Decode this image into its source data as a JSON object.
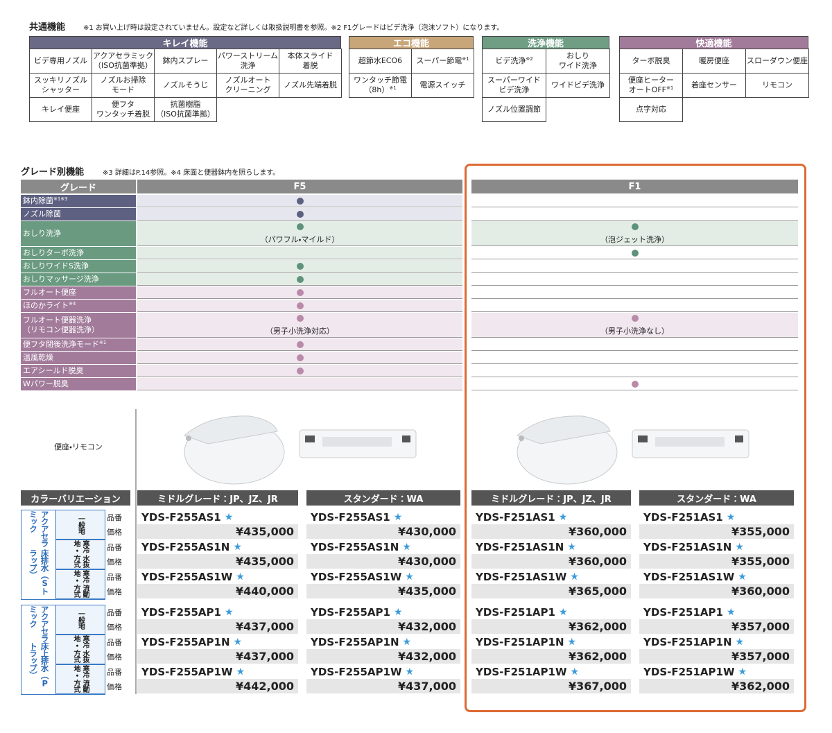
{
  "common": {
    "title": "共通機能",
    "note": "※1 お買い上げ時は設定されていません。設定など詳しくは取扱説明書を参照。※2 F1グレードはビデ洗浄（泡沫ソフト）になります。",
    "groups": [
      {
        "name": "キレイ機能",
        "color": "#6b6a86",
        "items": [
          {
            "text": "ビデ専用ノズル"
          },
          {
            "text": "アクアセラミック\n（ISO抗菌準拠）"
          },
          {
            "text": "鉢内スプレー"
          },
          {
            "text": "パワーストリーム\n洗浄"
          },
          {
            "text": "本体スライド\n着脱"
          },
          {
            "text": "スッキリノズル\nシャッター"
          },
          {
            "text": "ノズルお掃除\nモード"
          },
          {
            "text": "ノズルそうじ"
          },
          {
            "text": "ノズルオート\nクリーニング"
          },
          {
            "text": "ノズル先端着脱"
          },
          {
            "text": "キレイ便座"
          },
          {
            "text": "便フタ\nワンタッチ着脱"
          },
          {
            "text": "抗菌樹脂\n（ISO抗菌準拠）"
          }
        ]
      },
      {
        "name": "エコ機能",
        "color": "#c9a67a",
        "items": [
          {
            "text": "超節水ECO6"
          },
          {
            "text": "スーパー節電",
            "note": "※1"
          },
          {
            "text": "ワンタッチ節電\n（8h）",
            "note": "※1"
          },
          {
            "text": "電源スイッチ"
          }
        ]
      },
      {
        "name": "洗浄機能",
        "color": "#6f9e85",
        "items": [
          {
            "text": "ビデ洗浄",
            "note": "※2"
          },
          {
            "text": "おしり\nワイド洗浄"
          },
          {
            "text": "スーパーワイド\nビデ洗浄"
          },
          {
            "text": "ワイドビデ洗浄"
          },
          {
            "text": "ノズル位置調節"
          }
        ]
      },
      {
        "name": "快適機能",
        "color": "#a27b9b",
        "items": [
          {
            "text": "ターボ脱臭"
          },
          {
            "text": "暖房便座"
          },
          {
            "text": "スローダウン便座"
          },
          {
            "text": "便座ヒーター\nオートOFF",
            "note": "※1"
          },
          {
            "text": "着座センサー"
          },
          {
            "text": "リモコン"
          },
          {
            "text": "点字対応"
          }
        ]
      }
    ]
  },
  "grade": {
    "title": "グレード別機能",
    "note": "※3 詳細はP.14参照。※4 床面と便器鉢内を照らします。",
    "header": [
      "グレード",
      "F5",
      "F1"
    ],
    "groups": [
      {
        "color": "#5d6080",
        "tint": "#e6e6ef",
        "dot": "#5d6080",
        "rows": [
          {
            "label": "鉢内除菌",
            "note": "※1※3",
            "f5": {
              "dot": true
            },
            "f1": {
              "dot": false
            }
          },
          {
            "label": "ノズル除菌",
            "f5": {
              "dot": true
            },
            "f1": {
              "dot": false
            }
          }
        ]
      },
      {
        "color": "#6a9a80",
        "tint": "#e3ede6",
        "dot": "#5f927a",
        "rows": [
          {
            "label": "おしり洗浄",
            "f5": {
              "dot": true,
              "note": "（パワフル・マイルド）"
            },
            "f1": {
              "dot": true,
              "note": "（泡ジェット洗浄）"
            }
          },
          {
            "label": "おしりターボ洗浄",
            "f5": {
              "dot": false
            },
            "f1": {
              "dot": true
            }
          },
          {
            "label": "おしりワイドS洗浄",
            "f5": {
              "dot": true
            },
            "f1": {
              "dot": false
            }
          },
          {
            "label": "おしりマッサージ洗浄",
            "f5": {
              "dot": true
            },
            "f1": {
              "dot": false
            }
          }
        ]
      },
      {
        "color": "#a27b9b",
        "tint": "#f1e7ee",
        "dot": "#b98aa9",
        "rows": [
          {
            "label": "フルオート便座",
            "f5": {
              "dot": true
            },
            "f1": {
              "dot": false
            }
          },
          {
            "label": "ほのかライト",
            "note": "※4",
            "f5": {
              "dot": true
            },
            "f1": {
              "dot": false
            }
          },
          {
            "label": "フルオート便器洗浄\n（リモコン便器洗浄）",
            "f5": {
              "dot": true,
              "note": "（男子小洗浄対応）"
            },
            "f1": {
              "dot": true,
              "note": "（男子小洗浄なし）"
            }
          },
          {
            "label": "便フタ閉後洗浄モード",
            "note": "※1",
            "f5": {
              "dot": true
            },
            "f1": {
              "dot": false
            }
          },
          {
            "label": "温風乾燥",
            "f5": {
              "dot": true
            },
            "f1": {
              "dot": false
            }
          },
          {
            "label": "エアシールド脱臭",
            "f5": {
              "dot": true
            },
            "f1": {
              "dot": false
            }
          },
          {
            "label": "Wパワー脱臭",
            "f5": {
              "dot": false
            },
            "f1": {
              "dot": true
            }
          }
        ]
      }
    ]
  },
  "images": {
    "label": "便座・リモコン"
  },
  "colors": {
    "header": [
      "カラーバリエーション",
      "ミドルグレード：JP、JZ、JR",
      "スタンダード：WA",
      "ミドルグレード：JP、JZ、JR",
      "スタンダード：WA"
    ],
    "part_label": "品番",
    "price_label": "価格",
    "star": "★",
    "blocks": [
      {
        "name": [
          "アクアセラミック",
          "床排水（Sトラップ）"
        ],
        "rows": [
          {
            "region": [
              "一般地"
            ],
            "items": [
              {
                "model": "YDS-F255AS1",
                "price": "¥435,000"
              },
              {
                "model": "YDS-F255AS1",
                "price": "¥430,000"
              },
              {
                "model": "YDS-F251AS1",
                "price": "¥360,000"
              },
              {
                "model": "YDS-F251AS1",
                "price": "¥355,000"
              }
            ]
          },
          {
            "region": [
              "寒冷地・",
              "水抜方式"
            ],
            "items": [
              {
                "model": "YDS-F255AS1N",
                "price": "¥435,000"
              },
              {
                "model": "YDS-F255AS1N",
                "price": "¥430,000"
              },
              {
                "model": "YDS-F251AS1N",
                "price": "¥360,000"
              },
              {
                "model": "YDS-F251AS1N",
                "price": "¥355,000"
              }
            ]
          },
          {
            "region": [
              "寒冷地・",
              "流動方式"
            ],
            "items": [
              {
                "model": "YDS-F255AS1W",
                "price": "¥440,000"
              },
              {
                "model": "YDS-F255AS1W",
                "price": "¥435,000"
              },
              {
                "model": "YDS-F251AS1W",
                "price": "¥365,000"
              },
              {
                "model": "YDS-F251AS1W",
                "price": "¥360,000"
              }
            ]
          }
        ]
      },
      {
        "name": [
          "アクアセラミック",
          "床上排水（Pトラップ）"
        ],
        "rows": [
          {
            "region": [
              "一般地"
            ],
            "items": [
              {
                "model": "YDS-F255AP1",
                "price": "¥437,000"
              },
              {
                "model": "YDS-F255AP1",
                "price": "¥432,000"
              },
              {
                "model": "YDS-F251AP1",
                "price": "¥362,000"
              },
              {
                "model": "YDS-F251AP1",
                "price": "¥357,000"
              }
            ]
          },
          {
            "region": [
              "寒冷地・",
              "水抜方式"
            ],
            "items": [
              {
                "model": "YDS-F255AP1N",
                "price": "¥437,000"
              },
              {
                "model": "YDS-F255AP1N",
                "price": "¥432,000"
              },
              {
                "model": "YDS-F251AP1N",
                "price": "¥362,000"
              },
              {
                "model": "YDS-F251AP1N",
                "price": "¥357,000"
              }
            ]
          },
          {
            "region": [
              "寒冷地・",
              "流動方式"
            ],
            "items": [
              {
                "model": "YDS-F255AP1W",
                "price": "¥442,000"
              },
              {
                "model": "YDS-F255AP1W",
                "price": "¥437,000"
              },
              {
                "model": "YDS-F251AP1W",
                "price": "¥367,000"
              },
              {
                "model": "YDS-F251AP1W",
                "price": "¥362,000"
              }
            ]
          }
        ]
      }
    ]
  }
}
